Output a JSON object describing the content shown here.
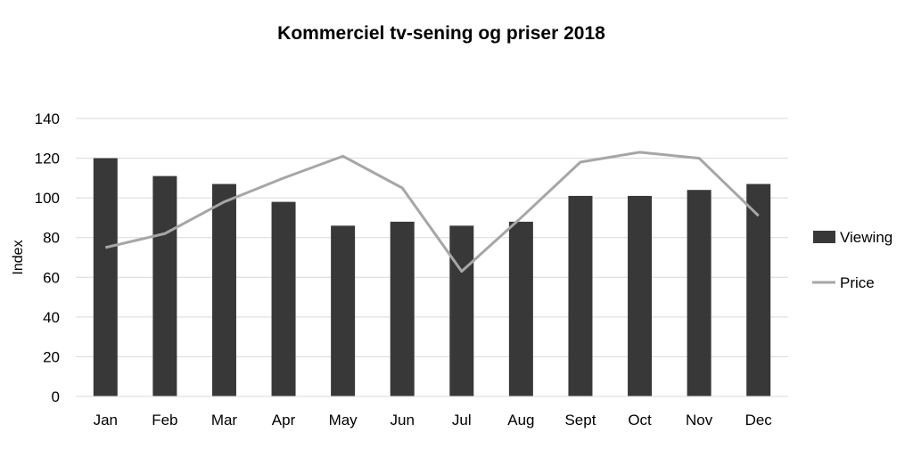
{
  "chart_data": {
    "type": "bar",
    "title": "Kommerciel tv-sening og priser 2018",
    "ylabel": "Index",
    "xlabel": "",
    "ylim": [
      0,
      140
    ],
    "yticks": [
      0,
      20,
      40,
      60,
      80,
      100,
      120,
      140
    ],
    "grid": true,
    "legend_position": "right",
    "categories": [
      "Jan",
      "Feb",
      "Mar",
      "Apr",
      "May",
      "Jun",
      "Jul",
      "Aug",
      "Sept",
      "Oct",
      "Nov",
      "Dec"
    ],
    "series": [
      {
        "name": "Viewing",
        "type": "bar",
        "color": "#383838",
        "values": [
          120,
          111,
          107,
          98,
          86,
          88,
          86,
          88,
          101,
          101,
          104,
          107
        ]
      },
      {
        "name": "Price",
        "type": "line",
        "color": "#a6a6a6",
        "values": [
          75,
          82,
          98,
          110,
          121,
          105,
          63,
          90,
          118,
          123,
          120,
          91
        ]
      }
    ]
  }
}
